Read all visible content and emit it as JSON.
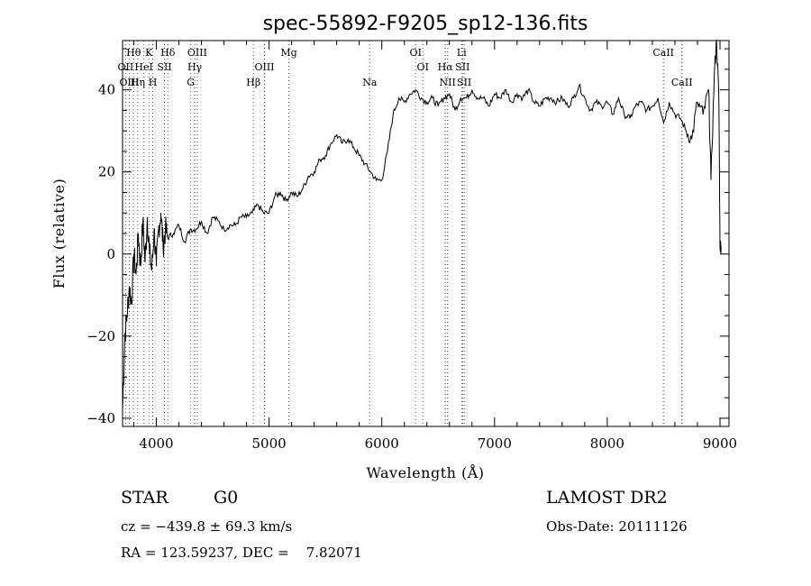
{
  "chart_data": {
    "type": "line",
    "title": "spec-55892-F9205_sp12-136.fits",
    "xlabel": "Wavelength (Å)",
    "ylabel": "Flux (relative)",
    "xlim": [
      3700,
      9080
    ],
    "ylim": [
      -42,
      52
    ],
    "xticks": [
      4000,
      5000,
      6000,
      7000,
      8000,
      9000
    ],
    "yticks": [
      -40,
      -20,
      0,
      20,
      40
    ],
    "series": [
      {
        "x": [
          3700,
          3720,
          3740,
          3760,
          3780,
          3800,
          3820,
          3840,
          3860,
          3880,
          3900,
          3920,
          3940,
          3960,
          3980,
          4000,
          4020,
          4040,
          4060,
          4080,
          4100,
          4150,
          4200,
          4250,
          4300,
          4350,
          4400,
          4450,
          4500,
          4550,
          4600,
          4650,
          4700,
          4750,
          4800,
          4850,
          4900,
          4950,
          5000,
          5050,
          5100,
          5150,
          5200,
          5250,
          5300,
          5350,
          5400,
          5450,
          5500,
          5550,
          5600,
          5650,
          5700,
          5750,
          5800,
          5850,
          5900,
          5950,
          6000,
          6050,
          6100,
          6150,
          6200,
          6250,
          6300,
          6350,
          6400,
          6450,
          6500,
          6550,
          6600,
          6650,
          6700,
          6750,
          6800,
          6850,
          6900,
          6950,
          7000,
          7050,
          7100,
          7150,
          7200,
          7250,
          7300,
          7350,
          7400,
          7450,
          7500,
          7550,
          7600,
          7650,
          7700,
          7750,
          7800,
          7850,
          7900,
          7950,
          8000,
          8050,
          8100,
          8150,
          8200,
          8250,
          8300,
          8350,
          8400,
          8450,
          8500,
          8550,
          8600,
          8650,
          8700,
          8750,
          8800,
          8850,
          8900,
          8920,
          8950,
          8970,
          8990,
          9000,
          9010
        ],
        "y": [
          -38,
          -20,
          -15,
          -8,
          -12,
          0,
          -5,
          5,
          -3,
          8,
          -2,
          9,
          0,
          -4,
          6,
          -3,
          6,
          10,
          2,
          6,
          4,
          5,
          7,
          3,
          6,
          6,
          8,
          5,
          9,
          8,
          6,
          7,
          7,
          9,
          9,
          10,
          12,
          10,
          10,
          14,
          15,
          13,
          15,
          14,
          16,
          19,
          20,
          23,
          24,
          27,
          29,
          27,
          28,
          26,
          24,
          22,
          20,
          18,
          18,
          25,
          34,
          38,
          37,
          39,
          40,
          38,
          37,
          38,
          36,
          38,
          39,
          35,
          38,
          38,
          40,
          38,
          38,
          36,
          39,
          38,
          40,
          37,
          39,
          38,
          40,
          37,
          36,
          38,
          38,
          37,
          38,
          36,
          38,
          41,
          38,
          35,
          37,
          36,
          37,
          34,
          38,
          34,
          33,
          36,
          37,
          35,
          36,
          38,
          32,
          37,
          34,
          33,
          30,
          28,
          37,
          34,
          40,
          18,
          44,
          52,
          38,
          2,
          2
        ]
      }
    ],
    "lines": [
      {
        "label": "Hθ",
        "wl": 3798,
        "row": 1,
        "style": "black"
      },
      {
        "label": "K",
        "wl": 3934,
        "row": 1,
        "style": "black"
      },
      {
        "label": "Hδ",
        "wl": 4102,
        "row": 1,
        "style": "black"
      },
      {
        "label": "OIII",
        "wl": 4363,
        "row": 1,
        "style": "black"
      },
      {
        "label": "Mg",
        "wl": 5175,
        "row": 1,
        "style": "black"
      },
      {
        "label": "OI",
        "wl": 6300,
        "row": 1,
        "style": "black"
      },
      {
        "label": "Li",
        "wl": 6708,
        "row": 1,
        "style": "black"
      },
      {
        "label": "CaII",
        "wl": 8498,
        "row": 1,
        "style": "red"
      },
      {
        "label": "OII",
        "wl": 3727,
        "row": 2,
        "style": "black"
      },
      {
        "label": "HeI",
        "wl": 3889,
        "row": 2,
        "style": "black"
      },
      {
        "label": "SII",
        "wl": 4072,
        "row": 2,
        "style": "black"
      },
      {
        "label": "Hγ",
        "wl": 4340,
        "row": 2,
        "style": "black"
      },
      {
        "label": "OIII",
        "wl": 4959,
        "row": 2,
        "style": "black"
      },
      {
        "label": "OI",
        "wl": 6364,
        "row": 2,
        "style": "black"
      },
      {
        "label": "Hα",
        "wl": 6563,
        "row": 2,
        "style": "red"
      },
      {
        "label": "SII",
        "wl": 6716,
        "row": 2,
        "style": "red"
      },
      {
        "label": "OIII",
        "wl": 3760,
        "row": 3,
        "style": "black"
      },
      {
        "label": "Hη",
        "wl": 3835,
        "row": 3,
        "style": "black"
      },
      {
        "label": "H",
        "wl": 3968,
        "row": 3,
        "style": "black"
      },
      {
        "label": "G",
        "wl": 4305,
        "row": 3,
        "style": "black"
      },
      {
        "label": "Hβ",
        "wl": 4861,
        "row": 3,
        "style": "black"
      },
      {
        "label": "Na",
        "wl": 5893,
        "row": 3,
        "style": "black"
      },
      {
        "label": "NII",
        "wl": 6583,
        "row": 3,
        "style": "black"
      },
      {
        "label": "SII",
        "wl": 6731,
        "row": 3,
        "style": "red"
      },
      {
        "label": "CaII",
        "wl": 8662,
        "row": 3,
        "style": "red"
      }
    ]
  },
  "info": {
    "object_class": "STAR",
    "subclass": "G0",
    "survey": "LAMOST DR2",
    "redshift": "cz = −439.8 ± 69.3 km/s",
    "obs_date": "Obs-Date: 20111126",
    "coords": "RA = 123.59237, DEC =    7.82071"
  }
}
